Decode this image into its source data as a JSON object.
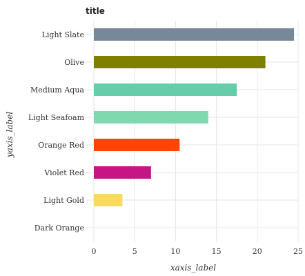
{
  "chart_data": {
    "type": "bar",
    "orientation": "horizontal",
    "title": "title",
    "xlabel": "xaxis_label",
    "ylabel": "yaxis_label",
    "xlim": [
      0,
      25
    ],
    "xticks": [
      0,
      5,
      10,
      15,
      20,
      25
    ],
    "grid": true,
    "categories": [
      "Dark Orange",
      "Light Gold",
      "Violet Red",
      "Orange Red",
      "Light Seafoam",
      "Medium Aqua",
      "Olive",
      "Light Slate"
    ],
    "values": [
      0,
      3.5,
      7,
      10.5,
      14,
      17.5,
      21,
      24.5
    ],
    "colors": [
      "#ff8c00",
      "#fada5e",
      "#c71585",
      "#ff4500",
      "#7fd8b0",
      "#66cdaa",
      "#808000",
      "#778899"
    ]
  }
}
